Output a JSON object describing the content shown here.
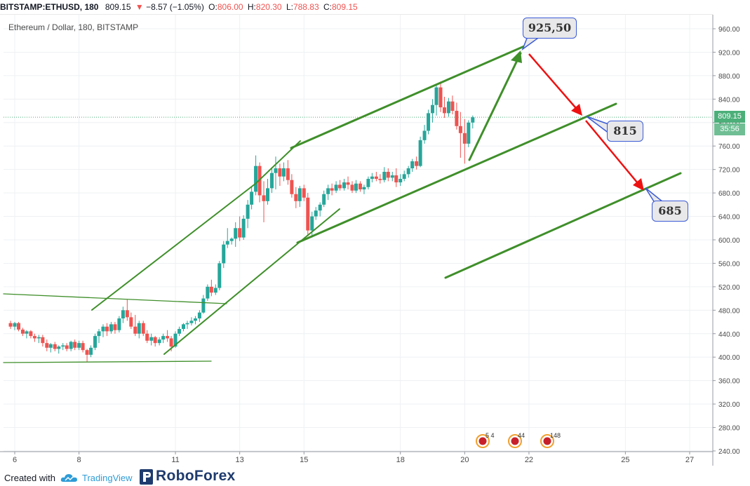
{
  "header": {
    "symbol": "BITSTAMP:ETHUSD, 180",
    "last": "809.15",
    "change_arrow": "▼",
    "change": "−8.57 (−1.05%)",
    "o_label": "O:",
    "o_value": "806.00",
    "h_label": "H:",
    "h_value": "820.30",
    "l_label": "L:",
    "l_value": "788.83",
    "c_label": "C:",
    "c_value": "809.15",
    "title": "Ethereum / Dollar, 180, BITSTAMP",
    "up_color": "#26a69a",
    "down_color": "#ef5350",
    "neutral_color": "#131722"
  },
  "price_tag": {
    "value": "809.15",
    "timer": "35:56",
    "color": "#4caf7a"
  },
  "annotations": [
    {
      "text": "925,50"
    },
    {
      "text": "815"
    },
    {
      "text": "685"
    }
  ],
  "event_badges": [
    {
      "text": "5 4"
    },
    {
      "text": "44"
    },
    {
      "text": "148"
    }
  ],
  "footer": {
    "created_with": "Created with",
    "tradingview": "TradingView",
    "roboforex": "RoboForex"
  },
  "chart_data": {
    "type": "candlestick",
    "title": "Ethereum / Dollar, 180, BITSTAMP",
    "y_ticks": [
      "960.00",
      "920.00",
      "880.00",
      "840.00",
      "800.00",
      "760.00",
      "720.00",
      "680.00",
      "640.00",
      "600.00",
      "560.00",
      "520.00",
      "480.00",
      "440.00",
      "400.00",
      "360.00",
      "320.00",
      "280.00",
      "240.00"
    ],
    "x_ticks": [
      "6",
      "8",
      "11",
      "13",
      "15",
      "18",
      "20",
      "22",
      "25",
      "27"
    ],
    "ylim": [
      240,
      970
    ],
    "x_range_days": [
      5.85,
      27.7
    ],
    "current_price": 809.15,
    "colors": {
      "up": "#26a69a",
      "down": "#ef5350",
      "trendline": "#3f8f2a",
      "arrow_down": "#ee1111"
    },
    "candles": [
      {
        "d": 5.87,
        "o": 458,
        "h": 462,
        "l": 448,
        "c": 452
      },
      {
        "d": 6.0,
        "o": 452,
        "h": 460,
        "l": 446,
        "c": 458
      },
      {
        "d": 6.12,
        "o": 458,
        "h": 460,
        "l": 444,
        "c": 447
      },
      {
        "d": 6.25,
        "o": 447,
        "h": 450,
        "l": 436,
        "c": 440
      },
      {
        "d": 6.37,
        "o": 440,
        "h": 446,
        "l": 432,
        "c": 444
      },
      {
        "d": 6.5,
        "o": 444,
        "h": 446,
        "l": 432,
        "c": 436
      },
      {
        "d": 6.62,
        "o": 436,
        "h": 440,
        "l": 426,
        "c": 432
      },
      {
        "d": 6.75,
        "o": 432,
        "h": 438,
        "l": 424,
        "c": 434
      },
      {
        "d": 6.87,
        "o": 434,
        "h": 438,
        "l": 418,
        "c": 424
      },
      {
        "d": 7.0,
        "o": 424,
        "h": 430,
        "l": 410,
        "c": 416
      },
      {
        "d": 7.12,
        "o": 416,
        "h": 424,
        "l": 408,
        "c": 422
      },
      {
        "d": 7.25,
        "o": 422,
        "h": 426,
        "l": 410,
        "c": 414
      },
      {
        "d": 7.37,
        "o": 414,
        "h": 420,
        "l": 406,
        "c": 418
      },
      {
        "d": 7.5,
        "o": 418,
        "h": 424,
        "l": 412,
        "c": 420
      },
      {
        "d": 7.62,
        "o": 420,
        "h": 424,
        "l": 410,
        "c": 414
      },
      {
        "d": 7.75,
        "o": 414,
        "h": 428,
        "l": 410,
        "c": 426
      },
      {
        "d": 7.87,
        "o": 426,
        "h": 430,
        "l": 412,
        "c": 416
      },
      {
        "d": 8.0,
        "o": 416,
        "h": 428,
        "l": 412,
        "c": 424
      },
      {
        "d": 8.12,
        "o": 424,
        "h": 428,
        "l": 408,
        "c": 412
      },
      {
        "d": 8.25,
        "o": 412,
        "h": 414,
        "l": 392,
        "c": 404
      },
      {
        "d": 8.37,
        "o": 404,
        "h": 420,
        "l": 400,
        "c": 416
      },
      {
        "d": 8.5,
        "o": 416,
        "h": 440,
        "l": 412,
        "c": 436
      },
      {
        "d": 8.62,
        "o": 436,
        "h": 448,
        "l": 424,
        "c": 444
      },
      {
        "d": 8.75,
        "o": 444,
        "h": 456,
        "l": 434,
        "c": 452
      },
      {
        "d": 8.87,
        "o": 452,
        "h": 458,
        "l": 436,
        "c": 444
      },
      {
        "d": 9.0,
        "o": 444,
        "h": 460,
        "l": 440,
        "c": 456
      },
      {
        "d": 9.12,
        "o": 456,
        "h": 460,
        "l": 440,
        "c": 446
      },
      {
        "d": 9.25,
        "o": 446,
        "h": 470,
        "l": 442,
        "c": 466
      },
      {
        "d": 9.37,
        "o": 466,
        "h": 486,
        "l": 458,
        "c": 480
      },
      {
        "d": 9.5,
        "o": 480,
        "h": 498,
        "l": 462,
        "c": 468
      },
      {
        "d": 9.62,
        "o": 468,
        "h": 476,
        "l": 448,
        "c": 452
      },
      {
        "d": 9.75,
        "o": 452,
        "h": 472,
        "l": 436,
        "c": 440
      },
      {
        "d": 9.87,
        "o": 440,
        "h": 462,
        "l": 432,
        "c": 458
      },
      {
        "d": 10.0,
        "o": 458,
        "h": 462,
        "l": 436,
        "c": 440
      },
      {
        "d": 10.12,
        "o": 440,
        "h": 446,
        "l": 424,
        "c": 428
      },
      {
        "d": 10.25,
        "o": 428,
        "h": 440,
        "l": 420,
        "c": 434
      },
      {
        "d": 10.37,
        "o": 434,
        "h": 436,
        "l": 418,
        "c": 424
      },
      {
        "d": 10.5,
        "o": 424,
        "h": 434,
        "l": 420,
        "c": 430
      },
      {
        "d": 10.62,
        "o": 430,
        "h": 440,
        "l": 424,
        "c": 436
      },
      {
        "d": 10.75,
        "o": 436,
        "h": 446,
        "l": 426,
        "c": 432
      },
      {
        "d": 10.87,
        "o": 432,
        "h": 436,
        "l": 410,
        "c": 418
      },
      {
        "d": 11.0,
        "o": 418,
        "h": 444,
        "l": 416,
        "c": 440
      },
      {
        "d": 11.12,
        "o": 440,
        "h": 452,
        "l": 436,
        "c": 448
      },
      {
        "d": 11.25,
        "o": 448,
        "h": 458,
        "l": 444,
        "c": 456
      },
      {
        "d": 11.37,
        "o": 456,
        "h": 462,
        "l": 448,
        "c": 458
      },
      {
        "d": 11.5,
        "o": 458,
        "h": 468,
        "l": 454,
        "c": 462
      },
      {
        "d": 11.62,
        "o": 462,
        "h": 470,
        "l": 456,
        "c": 466
      },
      {
        "d": 11.75,
        "o": 466,
        "h": 480,
        "l": 460,
        "c": 476
      },
      {
        "d": 11.87,
        "o": 476,
        "h": 506,
        "l": 474,
        "c": 500
      },
      {
        "d": 12.0,
        "o": 500,
        "h": 524,
        "l": 496,
        "c": 520
      },
      {
        "d": 12.12,
        "o": 520,
        "h": 532,
        "l": 504,
        "c": 510
      },
      {
        "d": 12.25,
        "o": 510,
        "h": 524,
        "l": 506,
        "c": 518
      },
      {
        "d": 12.37,
        "o": 518,
        "h": 564,
        "l": 514,
        "c": 560
      },
      {
        "d": 12.5,
        "o": 560,
        "h": 598,
        "l": 552,
        "c": 592
      },
      {
        "d": 12.62,
        "o": 592,
        "h": 620,
        "l": 586,
        "c": 598
      },
      {
        "d": 12.75,
        "o": 598,
        "h": 604,
        "l": 592,
        "c": 602
      },
      {
        "d": 12.87,
        "o": 602,
        "h": 630,
        "l": 588,
        "c": 620
      },
      {
        "d": 13.0,
        "o": 620,
        "h": 640,
        "l": 598,
        "c": 604
      },
      {
        "d": 13.12,
        "o": 604,
        "h": 642,
        "l": 600,
        "c": 636
      },
      {
        "d": 13.25,
        "o": 636,
        "h": 668,
        "l": 620,
        "c": 660
      },
      {
        "d": 13.37,
        "o": 660,
        "h": 690,
        "l": 652,
        "c": 682
      },
      {
        "d": 13.5,
        "o": 682,
        "h": 744,
        "l": 676,
        "c": 726
      },
      {
        "d": 13.62,
        "o": 726,
        "h": 732,
        "l": 664,
        "c": 676
      },
      {
        "d": 13.75,
        "o": 676,
        "h": 700,
        "l": 630,
        "c": 666
      },
      {
        "d": 13.87,
        "o": 666,
        "h": 704,
        "l": 660,
        "c": 688
      },
      {
        "d": 14.0,
        "o": 688,
        "h": 724,
        "l": 680,
        "c": 714
      },
      {
        "d": 14.12,
        "o": 714,
        "h": 742,
        "l": 686,
        "c": 722
      },
      {
        "d": 14.25,
        "o": 722,
        "h": 730,
        "l": 692,
        "c": 708
      },
      {
        "d": 14.37,
        "o": 708,
        "h": 732,
        "l": 700,
        "c": 722
      },
      {
        "d": 14.5,
        "o": 722,
        "h": 736,
        "l": 694,
        "c": 702
      },
      {
        "d": 14.62,
        "o": 702,
        "h": 712,
        "l": 672,
        "c": 678
      },
      {
        "d": 14.75,
        "o": 678,
        "h": 690,
        "l": 654,
        "c": 666
      },
      {
        "d": 14.87,
        "o": 666,
        "h": 692,
        "l": 656,
        "c": 688
      },
      {
        "d": 15.0,
        "o": 688,
        "h": 694,
        "l": 666,
        "c": 672
      },
      {
        "d": 15.12,
        "o": 672,
        "h": 680,
        "l": 606,
        "c": 616
      },
      {
        "d": 15.25,
        "o": 616,
        "h": 648,
        "l": 604,
        "c": 640
      },
      {
        "d": 15.37,
        "o": 640,
        "h": 656,
        "l": 634,
        "c": 650
      },
      {
        "d": 15.5,
        "o": 650,
        "h": 664,
        "l": 640,
        "c": 660
      },
      {
        "d": 15.62,
        "o": 660,
        "h": 684,
        "l": 656,
        "c": 678
      },
      {
        "d": 15.75,
        "o": 678,
        "h": 694,
        "l": 668,
        "c": 688
      },
      {
        "d": 15.87,
        "o": 688,
        "h": 696,
        "l": 676,
        "c": 684
      },
      {
        "d": 16.0,
        "o": 684,
        "h": 700,
        "l": 680,
        "c": 694
      },
      {
        "d": 16.12,
        "o": 694,
        "h": 702,
        "l": 684,
        "c": 688
      },
      {
        "d": 16.25,
        "o": 688,
        "h": 704,
        "l": 684,
        "c": 698
      },
      {
        "d": 16.37,
        "o": 698,
        "h": 708,
        "l": 686,
        "c": 694
      },
      {
        "d": 16.5,
        "o": 694,
        "h": 700,
        "l": 680,
        "c": 684
      },
      {
        "d": 16.62,
        "o": 684,
        "h": 702,
        "l": 680,
        "c": 696
      },
      {
        "d": 16.75,
        "o": 696,
        "h": 700,
        "l": 682,
        "c": 686
      },
      {
        "d": 16.87,
        "o": 686,
        "h": 694,
        "l": 678,
        "c": 690
      },
      {
        "d": 17.0,
        "o": 690,
        "h": 708,
        "l": 686,
        "c": 704
      },
      {
        "d": 17.12,
        "o": 704,
        "h": 714,
        "l": 698,
        "c": 708
      },
      {
        "d": 17.25,
        "o": 708,
        "h": 716,
        "l": 700,
        "c": 704
      },
      {
        "d": 17.37,
        "o": 704,
        "h": 712,
        "l": 696,
        "c": 702
      },
      {
        "d": 17.5,
        "o": 702,
        "h": 724,
        "l": 698,
        "c": 716
      },
      {
        "d": 17.62,
        "o": 716,
        "h": 722,
        "l": 700,
        "c": 706
      },
      {
        "d": 17.75,
        "o": 706,
        "h": 716,
        "l": 700,
        "c": 710
      },
      {
        "d": 17.87,
        "o": 710,
        "h": 722,
        "l": 690,
        "c": 698
      },
      {
        "d": 18.0,
        "o": 698,
        "h": 712,
        "l": 692,
        "c": 704
      },
      {
        "d": 18.12,
        "o": 704,
        "h": 718,
        "l": 700,
        "c": 712
      },
      {
        "d": 18.25,
        "o": 712,
        "h": 726,
        "l": 706,
        "c": 722
      },
      {
        "d": 18.37,
        "o": 722,
        "h": 738,
        "l": 716,
        "c": 734
      },
      {
        "d": 18.5,
        "o": 734,
        "h": 742,
        "l": 720,
        "c": 726
      },
      {
        "d": 18.62,
        "o": 726,
        "h": 776,
        "l": 724,
        "c": 770
      },
      {
        "d": 18.75,
        "o": 770,
        "h": 796,
        "l": 764,
        "c": 786
      },
      {
        "d": 18.87,
        "o": 786,
        "h": 822,
        "l": 780,
        "c": 816
      },
      {
        "d": 19.0,
        "o": 816,
        "h": 840,
        "l": 800,
        "c": 830
      },
      {
        "d": 19.12,
        "o": 830,
        "h": 866,
        "l": 812,
        "c": 860
      },
      {
        "d": 19.25,
        "o": 860,
        "h": 870,
        "l": 818,
        "c": 826
      },
      {
        "d": 19.37,
        "o": 826,
        "h": 844,
        "l": 808,
        "c": 816
      },
      {
        "d": 19.5,
        "o": 816,
        "h": 842,
        "l": 810,
        "c": 836
      },
      {
        "d": 19.62,
        "o": 836,
        "h": 846,
        "l": 814,
        "c": 820
      },
      {
        "d": 19.75,
        "o": 820,
        "h": 834,
        "l": 788,
        "c": 794
      },
      {
        "d": 19.87,
        "o": 794,
        "h": 818,
        "l": 740,
        "c": 782
      },
      {
        "d": 20.0,
        "o": 782,
        "h": 806,
        "l": 730,
        "c": 764
      },
      {
        "d": 20.12,
        "o": 764,
        "h": 804,
        "l": 758,
        "c": 800
      },
      {
        "d": 20.25,
        "o": 800,
        "h": 812,
        "l": 790,
        "c": 809
      }
    ],
    "annotations": [
      {
        "text": "925,50",
        "d": 21.8,
        "price": 925.5
      },
      {
        "text": "815",
        "d": 23.75,
        "price": 815
      },
      {
        "text": "685",
        "d": 25.7,
        "price": 685
      }
    ]
  }
}
